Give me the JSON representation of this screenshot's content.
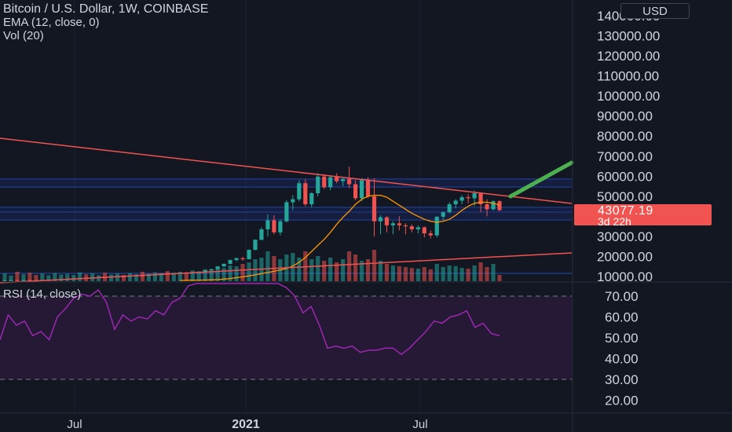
{
  "header": {
    "symbol_line": "Bitcoin / U.S. Dollar, 1W, COINBASE",
    "ema_line": "EMA (12, close, 0)",
    "vol_line": "Vol (20)",
    "currency_button": "USD"
  },
  "last_price": {
    "price": "43077.19",
    "countdown": "3d 22h"
  },
  "rsi": {
    "label": "RSI (14, close)"
  },
  "colors": {
    "background": "#131722",
    "up_candle": "#26a69a",
    "down_candle": "#ef5350",
    "ema_line": "#ff9800",
    "trendline": "#f05350",
    "projection_arrow": "#4caf50",
    "rsi_line": "#9c27b0",
    "rsi_band_fill": "#2a1a3a",
    "horizontal_levels": "#2962ff"
  },
  "chart_data": [
    {
      "type": "candlestick",
      "title": "Bitcoin / U.S. Dollar, 1W, COINBASE",
      "y_axis": {
        "ticks": [
          "10000.00",
          "20000.00",
          "30000.00",
          "40000.00",
          "50000.00",
          "60000.00",
          "70000.00",
          "80000.00",
          "90000.00",
          "100000.00",
          "110000.00",
          "120000.00",
          "130000.00",
          "140000.00"
        ],
        "range": [
          8000,
          145000
        ],
        "unit": "USD"
      },
      "x_axis": {
        "tick_labels": [
          "Jul",
          "2021",
          "Jul"
        ]
      },
      "candles": [
        [
          8000,
          8100,
          7900,
          8050
        ],
        [
          8050,
          8200,
          7950,
          8100
        ],
        [
          8100,
          8150,
          8000,
          8080
        ],
        [
          8080,
          8250,
          8000,
          8200
        ],
        [
          8200,
          8300,
          8100,
          8150
        ],
        [
          8150,
          8200,
          8050,
          8100
        ],
        [
          8100,
          8300,
          8050,
          8250
        ],
        [
          8250,
          8400,
          8200,
          8350
        ],
        [
          8350,
          8500,
          8300,
          8450
        ],
        [
          8450,
          8600,
          8400,
          8550
        ],
        [
          8550,
          8800,
          8500,
          8750
        ],
        [
          8750,
          9000,
          8700,
          8900
        ],
        [
          8900,
          9300,
          8850,
          9250
        ],
        [
          9250,
          9400,
          9100,
          9150
        ],
        [
          9150,
          9500,
          9100,
          9450
        ],
        [
          9450,
          9700,
          9400,
          9650
        ],
        [
          9650,
          9800,
          9500,
          9550
        ],
        [
          9550,
          9900,
          9500,
          9850
        ],
        [
          9850,
          10200,
          9800,
          10100
        ],
        [
          10100,
          10300,
          9900,
          9950
        ],
        [
          9950,
          10300,
          9900,
          10250
        ],
        [
          10250,
          10500,
          10100,
          10450
        ],
        [
          10450,
          10700,
          10300,
          10350
        ],
        [
          10350,
          10800,
          10300,
          10700
        ],
        [
          10700,
          11000,
          10600,
          10900
        ],
        [
          10900,
          11500,
          10800,
          11400
        ],
        [
          11400,
          11800,
          11200,
          11350
        ],
        [
          11350,
          11700,
          11200,
          11650
        ],
        [
          11650,
          12000,
          11500,
          11850
        ],
        [
          11850,
          12200,
          11700,
          11700
        ],
        [
          11700,
          12300,
          11600,
          12200
        ],
        [
          12200,
          12600,
          12000,
          12450
        ],
        [
          12450,
          13200,
          12300,
          13100
        ],
        [
          13100,
          13800,
          13000,
          13650
        ],
        [
          13650,
          15200,
          13600,
          15000
        ],
        [
          15000,
          16500,
          14800,
          16300
        ],
        [
          16300,
          18500,
          16000,
          18200
        ],
        [
          18200,
          19500,
          17500,
          19100
        ],
        [
          19100,
          19800,
          17800,
          18600
        ],
        [
          18600,
          23500,
          18500,
          23300
        ],
        [
          23300,
          28500,
          23000,
          28300
        ],
        [
          28300,
          34500,
          28000,
          33500
        ],
        [
          33500,
          41000,
          30000,
          38000
        ],
        [
          38000,
          40500,
          31000,
          32000
        ],
        [
          32000,
          38500,
          30500,
          37500
        ],
        [
          37500,
          48000,
          37000,
          47000
        ],
        [
          47000,
          50500,
          43000,
          48500
        ],
        [
          48500,
          58000,
          47500,
          56500
        ],
        [
          56500,
          58500,
          45000,
          46000
        ],
        [
          46000,
          52000,
          44500,
          51500
        ],
        [
          51500,
          61500,
          50000,
          59800
        ],
        [
          59800,
          61000,
          53500,
          54500
        ],
        [
          54500,
          60000,
          53000,
          59500
        ],
        [
          59500,
          61500,
          56500,
          57500
        ],
        [
          57500,
          59000,
          55000,
          58500
        ],
        [
          58500,
          64800,
          54000,
          56000
        ],
        [
          56000,
          58000,
          48000,
          49000
        ],
        [
          49000,
          59000,
          47500,
          58000
        ],
        [
          58000,
          59500,
          49000,
          50000
        ],
        [
          50000,
          59000,
          30000,
          37500
        ],
        [
          37500,
          40500,
          31000,
          39500
        ],
        [
          39500,
          40000,
          32000,
          35500
        ],
        [
          35500,
          37500,
          31000,
          36500
        ],
        [
          36500,
          40000,
          33000,
          35500
        ],
        [
          35500,
          36500,
          31000,
          35000
        ],
        [
          35000,
          36000,
          32000,
          33500
        ],
        [
          33500,
          35500,
          31500,
          34500
        ],
        [
          34500,
          35000,
          29500,
          31500
        ],
        [
          31500,
          33000,
          29000,
          30500
        ],
        [
          30500,
          40000,
          29500,
          39800
        ],
        [
          39800,
          42500,
          38000,
          42000
        ],
        [
          42000,
          47000,
          41500,
          46000
        ],
        [
          46000,
          48500,
          44000,
          47800
        ],
        [
          47800,
          50500,
          46000,
          49500
        ],
        [
          49500,
          51000,
          46500,
          49000
        ],
        [
          49000,
          52800,
          45000,
          51500
        ],
        [
          51500,
          52000,
          42000,
          46000
        ],
        [
          46000,
          48500,
          40000,
          43500
        ],
        [
          43500,
          48000,
          43000,
          47500
        ],
        [
          47500,
          48000,
          42500,
          43077
        ]
      ],
      "ema": [
        8000,
        8100,
        8150,
        8200,
        8250,
        8300,
        8450,
        8700,
        9000,
        9400,
        9800,
        10300,
        10800,
        11400,
        12000,
        12600,
        13200,
        14000,
        15200,
        17000,
        19500,
        22500,
        25500,
        28500,
        32000,
        36000,
        39500,
        42500,
        46000,
        48500,
        50000,
        50500,
        50500,
        49500,
        47500,
        45500,
        43500,
        41500,
        40000,
        38500,
        37500,
        37000,
        37500,
        38500,
        40500,
        43000,
        45000,
        46500,
        47000,
        47000,
        46500,
        45500
      ],
      "volume_relative": [
        0.25,
        0.18,
        0.3,
        0.22,
        0.27,
        0.2,
        0.24,
        0.19,
        0.26,
        0.21,
        0.23,
        0.2,
        0.28,
        0.22,
        0.25,
        0.19,
        0.27,
        0.21,
        0.24,
        0.2,
        0.26,
        0.22,
        0.3,
        0.24,
        0.28,
        0.26,
        0.32,
        0.27,
        0.3,
        0.28,
        0.34,
        0.3,
        0.38,
        0.35,
        0.45,
        0.42,
        0.5,
        0.47,
        0.55,
        0.6,
        0.7,
        0.75,
        0.95,
        0.8,
        0.7,
        0.85,
        0.9,
        0.75,
        0.95,
        0.7,
        0.8,
        0.65,
        0.75,
        0.6,
        0.7,
        0.95,
        0.85,
        0.65,
        0.7,
        1.0,
        0.65,
        0.55,
        0.5,
        0.48,
        0.45,
        0.42,
        0.4,
        0.45,
        0.38,
        0.55,
        0.45,
        0.5,
        0.48,
        0.42,
        0.4,
        0.5,
        0.6,
        0.45,
        0.55,
        0.2
      ],
      "last_price": 43077.19
    },
    {
      "type": "line",
      "title": "RSI (14, close)",
      "y_axis": {
        "ticks": [
          "20.00",
          "30.00",
          "40.00",
          "50.00",
          "60.00",
          "70.00"
        ],
        "range": [
          15,
          77
        ]
      },
      "band": [
        30,
        70
      ],
      "values": [
        49,
        61,
        56,
        58,
        51,
        53,
        49,
        60,
        64,
        69,
        71,
        70,
        73,
        67,
        54,
        61,
        58,
        60,
        59,
        63,
        61,
        67,
        69,
        75,
        82,
        80,
        78,
        76,
        80,
        83,
        80,
        82,
        79,
        81,
        76,
        74,
        70,
        62,
        65,
        56,
        45,
        46,
        45,
        46,
        43,
        44,
        44,
        45,
        45,
        42,
        45,
        49,
        53,
        58,
        57,
        60,
        61,
        63,
        55,
        57,
        52,
        51
      ]
    }
  ]
}
